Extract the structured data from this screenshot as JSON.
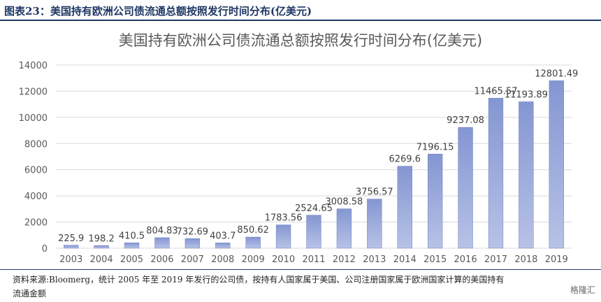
{
  "figure": {
    "label": "图表23：美国持有欧洲公司债流通总额按照发行时间分布(亿美元)"
  },
  "chart_data": {
    "type": "bar",
    "title": "美国持有欧洲公司债流通总额按照发行时间分布(亿美元)",
    "categories": [
      "2003",
      "2004",
      "2005",
      "2006",
      "2007",
      "2008",
      "2009",
      "2010",
      "2011",
      "2012",
      "2013",
      "2014",
      "2015",
      "2016",
      "2017",
      "2018",
      "2019"
    ],
    "values": [
      225.9,
      198.2,
      410.5,
      804.83,
      732.69,
      403.7,
      850.62,
      1783.56,
      2524.65,
      3008.58,
      3756.57,
      6269.6,
      7196.15,
      9237.08,
      11465.57,
      11193.89,
      12801.49
    ],
    "value_labels": [
      "225.9",
      "198.2",
      "410.5",
      "804.83",
      "732.69",
      "403.7",
      "850.62",
      "1783.56",
      "2524.65",
      "3008.58",
      "3756.57",
      "6269.6",
      "7196.15",
      "9237.08",
      "11465.57",
      "11193.89",
      "12801.49"
    ],
    "y_ticks": [
      "0",
      "2000",
      "4000",
      "6000",
      "8000",
      "10000",
      "12000",
      "14000"
    ],
    "ylim": [
      0,
      14000
    ],
    "grid": true,
    "legend": "none",
    "bar_color_top": "#8496d2",
    "bar_color_bottom": "#b7c2e6",
    "grid_color": "#d9d9d9"
  },
  "source": {
    "line1": "资料来源:Bloomerg，统计 2005 年至 2019 年发行的公司债，按持有人国家属于美国、公司注册国家属于欧洲国家计算的美国持有",
    "line2": "流通金额"
  },
  "watermark": "格隆汇"
}
